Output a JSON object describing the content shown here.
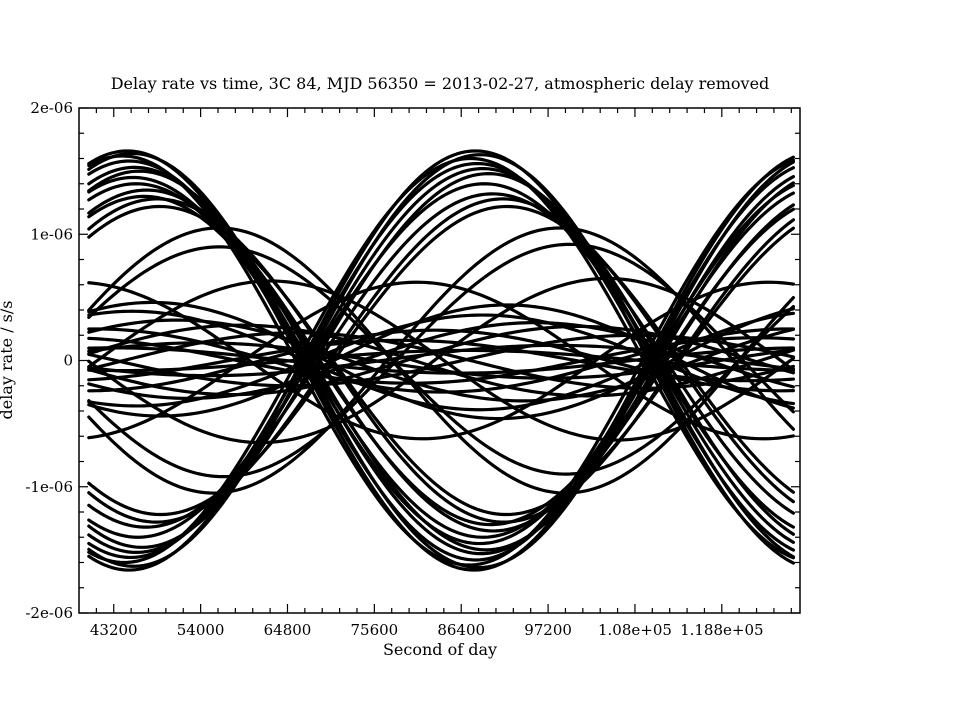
{
  "chart_data": {
    "type": "line",
    "title": "Delay rate vs time, 3C 84, MJD 56350 = 2013-02-27, atmospheric delay removed",
    "xlabel": "Second of day",
    "ylabel": "delay rate / s/s",
    "xlim": [
      38880,
      128520
    ],
    "ylim": [
      -2e-06,
      2e-06
    ],
    "x_ticks": [
      {
        "value": 43200,
        "label": "43200"
      },
      {
        "value": 54000,
        "label": "54000"
      },
      {
        "value": 64800,
        "label": "64800"
      },
      {
        "value": 75600,
        "label": "75600"
      },
      {
        "value": 86400,
        "label": "86400"
      },
      {
        "value": 97200,
        "label": "97200"
      },
      {
        "value": 108000,
        "label": "1.08e+05"
      },
      {
        "value": 118800,
        "label": "1.188e+05"
      }
    ],
    "y_ticks": [
      {
        "value": 2e-06,
        "label": "2e-06"
      },
      {
        "value": 1e-06,
        "label": "1e-06"
      },
      {
        "value": 0,
        "label": "0"
      },
      {
        "value": -1e-06,
        "label": "-1e-06"
      },
      {
        "value": -2e-06,
        "label": "-2e-06"
      }
    ],
    "grid": false,
    "legend": "none",
    "line_color": "#000000",
    "x_start": 40100,
    "x_end": 127700,
    "period_seconds": 86164,
    "series": [
      {
        "amplitude": 1.66e-06,
        "peak_x": 44900
      },
      {
        "amplitude": 1.64e-06,
        "peak_x": 45500
      },
      {
        "amplitude": 1.62e-06,
        "peak_x": 44300
      },
      {
        "amplitude": 1.58e-06,
        "peak_x": 45100
      },
      {
        "amplitude": 1.53e-06,
        "peak_x": 45800
      },
      {
        "amplitude": 1.5e-06,
        "peak_x": 46400
      },
      {
        "amplitude": 1.45e-06,
        "peak_x": 45600
      },
      {
        "amplitude": 1.4e-06,
        "peak_x": 46000
      },
      {
        "amplitude": 1.35e-06,
        "peak_x": 47300
      },
      {
        "amplitude": 1.3e-06,
        "peak_x": 47000
      },
      {
        "amplitude": 1.28e-06,
        "peak_x": 48600
      },
      {
        "amplitude": 1.22e-06,
        "peak_x": 48900
      },
      {
        "amplitude": 1.05e-06,
        "peak_x": 56300
      },
      {
        "amplitude": 9e-07,
        "peak_x": 56300
      },
      {
        "amplitude": 6.2e-07,
        "peak_x": 38500
      },
      {
        "amplitude": 6.3e-07,
        "peak_x": 62700
      },
      {
        "amplitude": 4.6e-07,
        "peak_x": 48000
      },
      {
        "amplitude": 3.9e-07,
        "peak_x": 45500
      },
      {
        "amplitude": 3.2e-07,
        "peak_x": 51000
      },
      {
        "amplitude": 2.8e-07,
        "peak_x": 59000
      },
      {
        "amplitude": 2.5e-07,
        "peak_x": 41000
      },
      {
        "amplitude": 2.2e-07,
        "peak_x": 66000
      },
      {
        "amplitude": 1.8e-07,
        "peak_x": 37000
      },
      {
        "amplitude": 1.4e-07,
        "peak_x": 54000
      },
      {
        "amplitude": 1e-07,
        "peak_x": 43000
      },
      {
        "amplitude": -1.66e-06,
        "peak_x": 45100
      },
      {
        "amplitude": -1.63e-06,
        "peak_x": 45700
      },
      {
        "amplitude": -1.6e-06,
        "peak_x": 44500
      },
      {
        "amplitude": -1.56e-06,
        "peak_x": 45300
      },
      {
        "amplitude": -1.52e-06,
        "peak_x": 46000
      },
      {
        "amplitude": -1.48e-06,
        "peak_x": 46700
      },
      {
        "amplitude": -1.4e-06,
        "peak_x": 46200
      },
      {
        "amplitude": -1.32e-06,
        "peak_x": 47200
      },
      {
        "amplitude": -1.28e-06,
        "peak_x": 48500
      },
      {
        "amplitude": -1.22e-06,
        "peak_x": 49000
      },
      {
        "amplitude": -1.05e-06,
        "peak_x": 55600
      },
      {
        "amplitude": -9.2e-07,
        "peak_x": 56800
      },
      {
        "amplitude": -6.5e-07,
        "peak_x": 61500
      },
      {
        "amplitude": -6.2e-07,
        "peak_x": 37800
      },
      {
        "amplitude": -4.4e-07,
        "peak_x": 49000
      },
      {
        "amplitude": -3.6e-07,
        "peak_x": 46000
      },
      {
        "amplitude": -3e-07,
        "peak_x": 52500
      },
      {
        "amplitude": -2.7e-07,
        "peak_x": 58000
      },
      {
        "amplitude": -2.4e-07,
        "peak_x": 40000
      },
      {
        "amplitude": -2e-07,
        "peak_x": 65000
      },
      {
        "amplitude": -1.6e-07,
        "peak_x": 36000
      },
      {
        "amplitude": -1.2e-07,
        "peak_x": 55000
      },
      {
        "amplitude": -8e-08,
        "peak_x": 44000
      }
    ]
  }
}
